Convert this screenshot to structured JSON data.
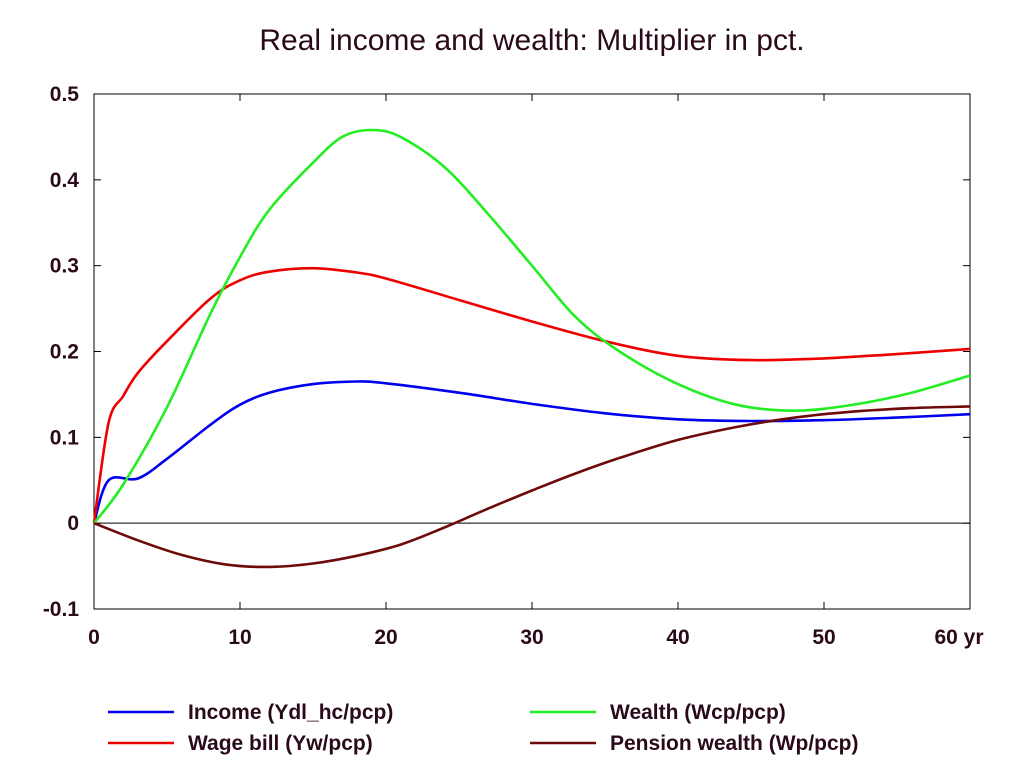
{
  "chart_data": {
    "type": "line",
    "title": "Real income and wealth: Multiplier in pct.",
    "xlabel": "",
    "ylabel": "",
    "x_unit": "yr",
    "xlim": [
      0,
      60
    ],
    "ylim": [
      -0.1,
      0.5
    ],
    "x_ticks": [
      0,
      10,
      20,
      30,
      40,
      50,
      60
    ],
    "y_ticks": [
      -0.1,
      0,
      0.1,
      0.2,
      0.3,
      0.4,
      0.5
    ],
    "x_tick_labels": [
      "0",
      "10",
      "20",
      "30",
      "40",
      "50",
      "60 yr"
    ],
    "y_tick_labels": [
      "-0.1",
      "0",
      "0.1",
      "0.2",
      "0.3",
      "0.4",
      "0.5"
    ],
    "zero_line": true,
    "grid": false,
    "legend_position": "bottom",
    "series": [
      {
        "name": "Income (Ydl_hc/pcp)",
        "color": "#0000ee",
        "points": [
          [
            0,
            0
          ],
          [
            1,
            0.05
          ],
          [
            3,
            0.052
          ],
          [
            5,
            0.075
          ],
          [
            8,
            0.115
          ],
          [
            10,
            0.138
          ],
          [
            12,
            0.152
          ],
          [
            15,
            0.162
          ],
          [
            18,
            0.165
          ],
          [
            20,
            0.163
          ],
          [
            25,
            0.152
          ],
          [
            30,
            0.139
          ],
          [
            35,
            0.128
          ],
          [
            40,
            0.121
          ],
          [
            45,
            0.119
          ],
          [
            50,
            0.12
          ],
          [
            55,
            0.123
          ],
          [
            60,
            0.127
          ]
        ]
      },
      {
        "name": "Wage bill (Yw/pcp)",
        "color": "#ee0000",
        "points": [
          [
            0,
            0
          ],
          [
            1,
            0.117
          ],
          [
            2,
            0.148
          ],
          [
            3,
            0.175
          ],
          [
            5,
            0.212
          ],
          [
            8,
            0.262
          ],
          [
            10,
            0.283
          ],
          [
            12,
            0.293
          ],
          [
            15,
            0.297
          ],
          [
            18,
            0.292
          ],
          [
            20,
            0.285
          ],
          [
            25,
            0.26
          ],
          [
            30,
            0.235
          ],
          [
            35,
            0.212
          ],
          [
            40,
            0.195
          ],
          [
            45,
            0.19
          ],
          [
            50,
            0.192
          ],
          [
            55,
            0.197
          ],
          [
            60,
            0.203
          ]
        ]
      },
      {
        "name": "Wealth (Wcp/pcp)",
        "color": "#22ee22",
        "points": [
          [
            0,
            0
          ],
          [
            2,
            0.045
          ],
          [
            5,
            0.135
          ],
          [
            8,
            0.245
          ],
          [
            10,
            0.31
          ],
          [
            12,
            0.365
          ],
          [
            15,
            0.42
          ],
          [
            17,
            0.45
          ],
          [
            19,
            0.458
          ],
          [
            21,
            0.45
          ],
          [
            24,
            0.415
          ],
          [
            27,
            0.36
          ],
          [
            30,
            0.3
          ],
          [
            33,
            0.24
          ],
          [
            36,
            0.2
          ],
          [
            40,
            0.162
          ],
          [
            44,
            0.138
          ],
          [
            48,
            0.131
          ],
          [
            52,
            0.138
          ],
          [
            56,
            0.152
          ],
          [
            60,
            0.172
          ]
        ]
      },
      {
        "name": "Pension wealth (Wp/pcp)",
        "color": "#6e0a0a",
        "points": [
          [
            0,
            0
          ],
          [
            3,
            -0.02
          ],
          [
            6,
            -0.037
          ],
          [
            9,
            -0.048
          ],
          [
            12,
            -0.051
          ],
          [
            15,
            -0.047
          ],
          [
            18,
            -0.038
          ],
          [
            21,
            -0.025
          ],
          [
            24,
            -0.005
          ],
          [
            27,
            0.017
          ],
          [
            30,
            0.038
          ],
          [
            33,
            0.058
          ],
          [
            36,
            0.076
          ],
          [
            40,
            0.097
          ],
          [
            44,
            0.112
          ],
          [
            48,
            0.123
          ],
          [
            52,
            0.13
          ],
          [
            56,
            0.134
          ],
          [
            60,
            0.136
          ]
        ]
      }
    ],
    "legend": [
      {
        "label": "Income (Ydl_hc/pcp)",
        "color": "#0000ee"
      },
      {
        "label": "Wealth (Wcp/pcp)",
        "color": "#22ee22"
      },
      {
        "label": "Wage bill (Yw/pcp)",
        "color": "#ee0000"
      },
      {
        "label": "Pension wealth (Wp/pcp)",
        "color": "#6e0a0a"
      }
    ]
  }
}
